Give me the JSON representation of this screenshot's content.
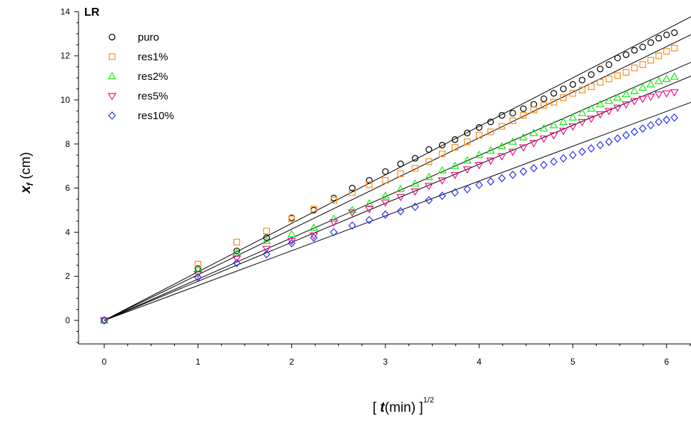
{
  "chart_data": {
    "type": "scatter",
    "panel_label": "LR",
    "xlabel": {
      "pre": "[ ",
      "var": "t",
      "mid": "(min) ]",
      "sup": "1/2"
    },
    "ylabel": {
      "var": "x",
      "sub": "f",
      "unit": " (cm)"
    },
    "xlim": [
      -0.2,
      6.3
    ],
    "ylim": [
      -1,
      14
    ],
    "xticks": [
      0,
      1,
      2,
      3,
      4,
      5,
      6
    ],
    "yticks": [
      0,
      2,
      4,
      6,
      8,
      10,
      12,
      14
    ],
    "x_minor_step": 0.25,
    "y_minor_step": 0.5,
    "grid": false,
    "legend_position": "top-left",
    "x": [
      0,
      1,
      1.414,
      1.732,
      2,
      2.236,
      2.449,
      2.646,
      2.828,
      3,
      3.162,
      3.317,
      3.464,
      3.606,
      3.742,
      3.873,
      4,
      4.123,
      4.243,
      4.359,
      4.472,
      4.583,
      4.69,
      4.796,
      4.899,
      5,
      5.099,
      5.196,
      5.292,
      5.385,
      5.477,
      5.568,
      5.657,
      5.745,
      5.831,
      5.916,
      6,
      6.083
    ],
    "series": [
      {
        "name": "puro",
        "marker": "circle",
        "color": "#000000",
        "values": [
          0,
          2.35,
          3.15,
          3.75,
          4.65,
          5.0,
          5.55,
          6.0,
          6.35,
          6.75,
          7.1,
          7.35,
          7.75,
          7.95,
          8.2,
          8.5,
          8.75,
          9.0,
          9.3,
          9.4,
          9.6,
          9.8,
          10.05,
          10.3,
          10.5,
          10.7,
          10.9,
          11.15,
          11.4,
          11.6,
          11.9,
          12.05,
          12.25,
          12.4,
          12.6,
          12.8,
          12.95,
          13.05
        ],
        "fit_slope": 2.2
      },
      {
        "name": "res1%",
        "marker": "square",
        "color": "#ff8c1a",
        "values": [
          0,
          2.55,
          3.55,
          4.05,
          4.6,
          5.05,
          5.45,
          5.8,
          6.15,
          6.35,
          6.65,
          6.9,
          7.2,
          7.55,
          7.85,
          8.1,
          8.4,
          8.55,
          8.8,
          9.05,
          9.3,
          9.55,
          9.75,
          9.9,
          10.1,
          10.3,
          10.45,
          10.6,
          10.8,
          10.95,
          11.1,
          11.25,
          11.45,
          11.6,
          11.8,
          12.0,
          12.2,
          12.35
        ],
        "fit_slope": 2.07
      },
      {
        "name": "res2%",
        "marker": "triangle-up",
        "color": "#11ee11",
        "values": [
          0,
          2.3,
          3.05,
          3.6,
          3.9,
          4.2,
          4.6,
          5.0,
          5.3,
          5.65,
          5.95,
          6.2,
          6.5,
          6.8,
          7.0,
          7.25,
          7.5,
          7.7,
          7.9,
          8.1,
          8.3,
          8.5,
          8.7,
          8.85,
          9.0,
          9.2,
          9.4,
          9.6,
          9.8,
          9.95,
          10.1,
          10.25,
          10.4,
          10.55,
          10.7,
          10.85,
          10.95,
          11.05
        ],
        "fit_slope": 1.87
      },
      {
        "name": "res5%",
        "marker": "triangle-down",
        "color": "#ee1188",
        "values": [
          0,
          2.1,
          2.8,
          3.25,
          3.6,
          3.85,
          4.45,
          4.9,
          5.05,
          5.35,
          5.6,
          5.85,
          6.1,
          6.35,
          6.6,
          6.85,
          7.05,
          7.25,
          7.45,
          7.65,
          7.85,
          8.05,
          8.25,
          8.4,
          8.6,
          8.8,
          9.0,
          9.15,
          9.35,
          9.5,
          9.65,
          9.8,
          9.95,
          10.05,
          10.15,
          10.25,
          10.3,
          10.35
        ],
        "fit_slope": 1.77
      },
      {
        "name": "res10%",
        "marker": "diamond",
        "color": "#2233ee",
        "values": [
          0,
          1.95,
          2.6,
          3.0,
          3.5,
          3.75,
          4.0,
          4.3,
          4.55,
          4.8,
          4.95,
          5.15,
          5.45,
          5.65,
          5.8,
          5.95,
          6.15,
          6.3,
          6.45,
          6.6,
          6.75,
          6.9,
          7.05,
          7.2,
          7.35,
          7.5,
          7.65,
          7.8,
          7.95,
          8.1,
          8.25,
          8.4,
          8.55,
          8.7,
          8.85,
          9.0,
          9.1,
          9.2
        ],
        "fit_slope": 1.58
      }
    ]
  }
}
